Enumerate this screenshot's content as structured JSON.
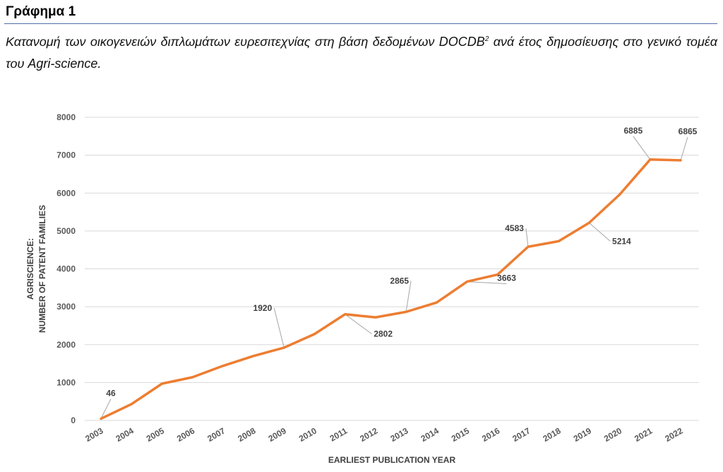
{
  "figure": {
    "heading": "Γράφημα 1",
    "caption_main": "Κατανομή των οικογενειών διπλωμάτων ευρεσιτεχνίας στη βάση δεδομένων DOCDB",
    "caption_sup": "2",
    "caption_rest": " ανά έτος δημοσίευσης στο γενικό τομέα του Agri-science."
  },
  "colors": {
    "line": "#ed7d31",
    "grid": "#d9d9d9",
    "heading_rule": "#4f6fa8"
  },
  "chart_data": {
    "type": "line",
    "title": "",
    "xlabel": "EARLIEST PUBLICATION YEAR",
    "ylabel_line1": "AGRISCIENCE:",
    "ylabel_line2": "NUMBER OF PATENT FAMILIES",
    "ylim": [
      0,
      8000
    ],
    "yticks": [
      0,
      1000,
      2000,
      3000,
      4000,
      5000,
      6000,
      7000,
      8000
    ],
    "grid": true,
    "categories": [
      "2003",
      "2004",
      "2005",
      "2006",
      "2007",
      "2008",
      "2009",
      "2010",
      "2011",
      "2012",
      "2013",
      "2014",
      "2015",
      "2016",
      "2017",
      "2018",
      "2019",
      "2020",
      "2021",
      "2022"
    ],
    "series": [
      {
        "values": [
          46,
          430,
          970,
          1140,
          1440,
          1700,
          1920,
          2280,
          2802,
          2720,
          2865,
          3110,
          3663,
          3850,
          4583,
          4730,
          5214,
          5960,
          6885,
          6865
        ]
      }
    ],
    "data_labels": [
      {
        "category": "2003",
        "value": 46,
        "text": "46"
      },
      {
        "category": "2009",
        "value": 1920,
        "text": "1920"
      },
      {
        "category": "2011",
        "value": 2802,
        "text": "2802"
      },
      {
        "category": "2013",
        "value": 2865,
        "text": "2865"
      },
      {
        "category": "2015",
        "value": 3663,
        "text": "3663"
      },
      {
        "category": "2017",
        "value": 4583,
        "text": "4583"
      },
      {
        "category": "2019",
        "value": 5214,
        "text": "5214"
      },
      {
        "category": "2021",
        "value": 6885,
        "text": "6885"
      },
      {
        "category": "2022",
        "value": 6865,
        "text": "6865"
      }
    ]
  }
}
